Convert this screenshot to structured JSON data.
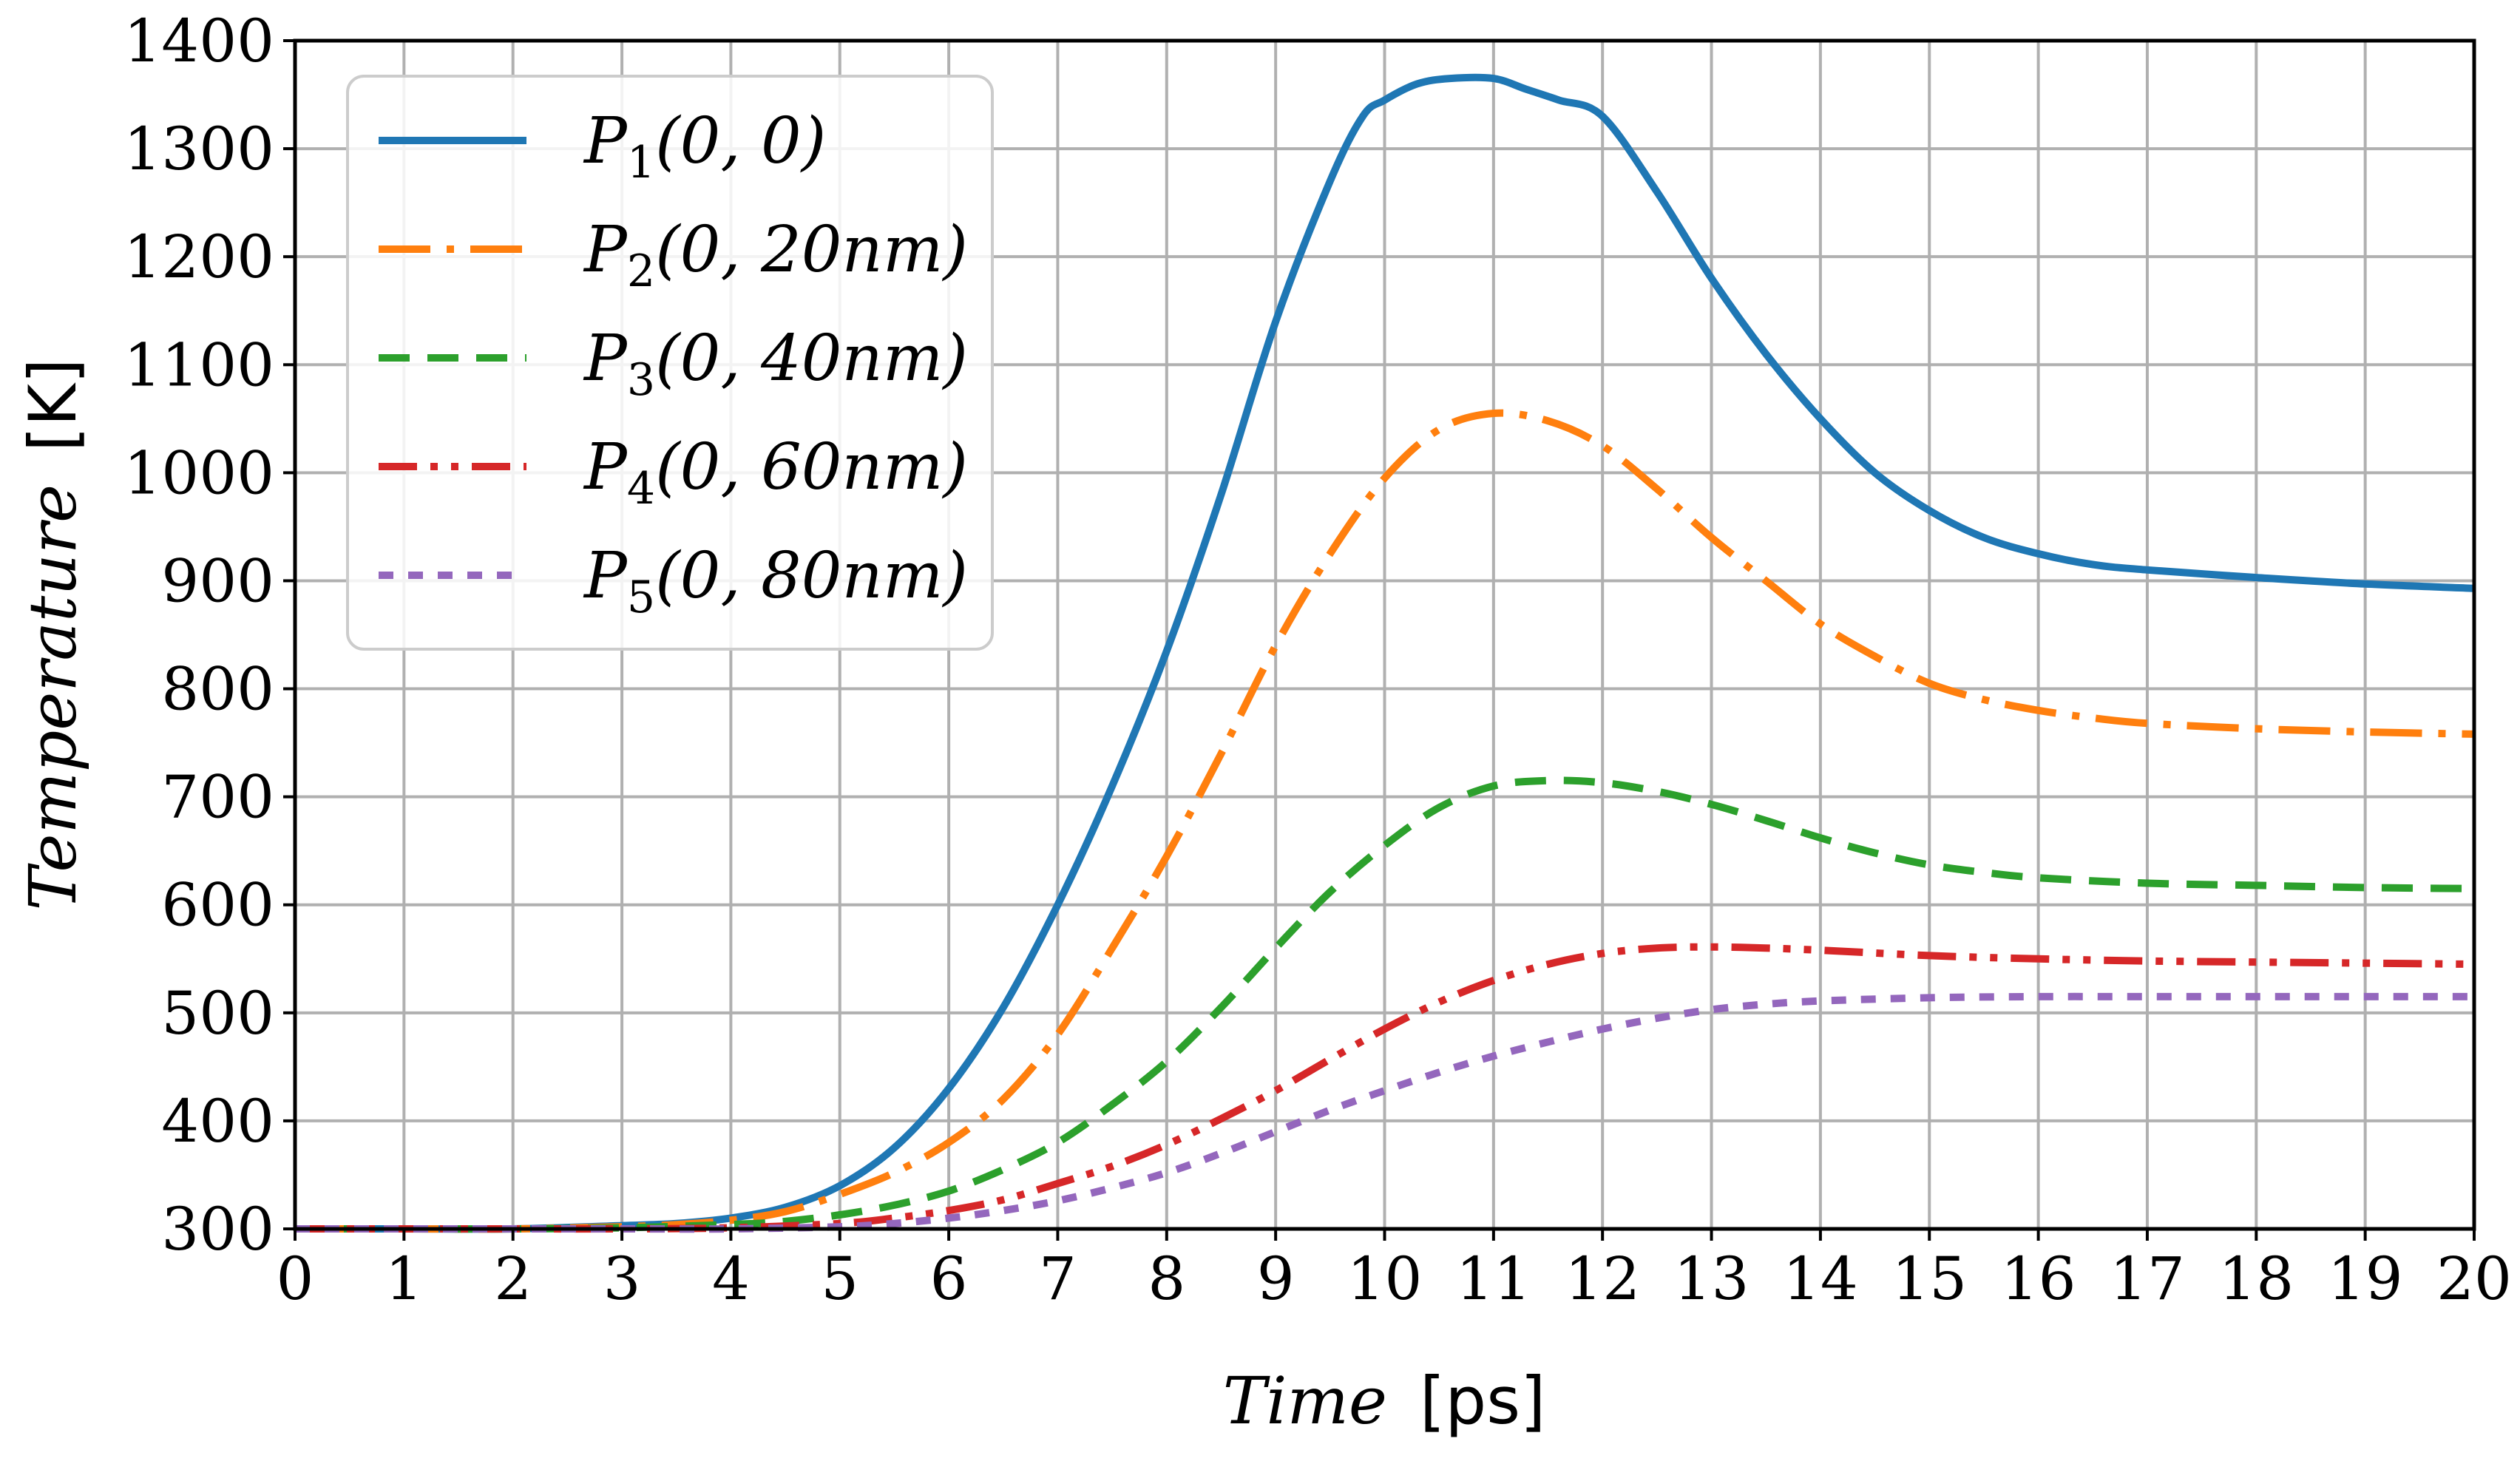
{
  "chart_data": {
    "type": "line",
    "title": "",
    "xlabel": {
      "var": "Time",
      "unit": "[ps]"
    },
    "ylabel": {
      "var": "Temperature",
      "unit": "[K]"
    },
    "xlim": [
      0,
      20
    ],
    "ylim": [
      300,
      1400
    ],
    "xticks": [
      0,
      1,
      2,
      3,
      4,
      5,
      6,
      7,
      8,
      9,
      10,
      11,
      12,
      13,
      14,
      15,
      16,
      17,
      18,
      19,
      20
    ],
    "yticks": [
      300,
      400,
      500,
      600,
      700,
      800,
      900,
      1000,
      1100,
      1200,
      1300,
      1400
    ],
    "grid": true,
    "legend_position": "top-left",
    "series": [
      {
        "name": "P1(0,0)",
        "legend": {
          "p": "P",
          "sub": "1",
          "args": "(0, 0)"
        },
        "color": "#1f77b4",
        "style": "solid",
        "x": [
          0,
          1,
          2,
          3,
          3.5,
          4,
          4.5,
          5,
          5.5,
          6,
          6.5,
          7,
          7.5,
          8,
          8.5,
          9,
          9.5,
          9.8,
          10,
          10.3,
          10.6,
          11,
          11.3,
          11.6,
          12,
          12.5,
          13,
          13.5,
          14,
          14.5,
          15,
          15.5,
          16,
          16.5,
          17,
          18,
          19,
          20
        ],
        "y": [
          300,
          300,
          300,
          303,
          305,
          310,
          320,
          340,
          375,
          430,
          505,
          600,
          710,
          835,
          980,
          1140,
          1270,
          1330,
          1345,
          1360,
          1365,
          1365,
          1355,
          1345,
          1330,
          1260,
          1180,
          1110,
          1050,
          1000,
          965,
          940,
          925,
          915,
          910,
          903,
          897,
          893
        ]
      },
      {
        "name": "P2(0,20nm)",
        "legend": {
          "p": "P",
          "sub": "2",
          "args": "(0, 20nm)"
        },
        "color": "#ff7f0e",
        "style": "dashdot",
        "x": [
          0,
          1,
          2,
          3,
          3.5,
          4,
          4.5,
          5,
          5.5,
          6,
          6.5,
          7,
          7.5,
          8,
          8.5,
          9,
          9.5,
          10,
          10.5,
          11,
          11.5,
          12,
          12.5,
          13,
          13.5,
          14,
          14.5,
          15,
          15.5,
          16,
          16.5,
          17,
          18,
          19,
          20
        ],
        "y": [
          300,
          300,
          300,
          302,
          304,
          308,
          316,
          332,
          352,
          380,
          420,
          480,
          560,
          645,
          740,
          840,
          925,
          995,
          1040,
          1055,
          1048,
          1025,
          985,
          940,
          900,
          860,
          830,
          805,
          790,
          780,
          773,
          768,
          763,
          760,
          758
        ]
      },
      {
        "name": "P3(0,40nm)",
        "legend": {
          "p": "P",
          "sub": "3",
          "args": "(0, 40nm)"
        },
        "color": "#2ca02c",
        "style": "dashed",
        "x": [
          0,
          1,
          2,
          3,
          4,
          4.5,
          5,
          5.5,
          6,
          6.5,
          7,
          7.5,
          8,
          8.5,
          9,
          9.5,
          10,
          10.5,
          11,
          11.5,
          12,
          12.5,
          13,
          13.5,
          14,
          14.5,
          15,
          15.5,
          16,
          17,
          18,
          19,
          20
        ],
        "y": [
          300,
          300,
          300,
          301,
          304,
          307,
          313,
          322,
          335,
          355,
          380,
          415,
          455,
          505,
          560,
          612,
          655,
          690,
          710,
          715,
          713,
          705,
          693,
          678,
          662,
          648,
          637,
          630,
          625,
          620,
          618,
          616,
          615
        ]
      },
      {
        "name": "P4(0,60nm)",
        "legend": {
          "p": "P",
          "sub": "4",
          "args": "(0, 60nm)"
        },
        "color": "#d62728",
        "style": "dashdotdot",
        "x": [
          0,
          1,
          2,
          3,
          4,
          5,
          5.5,
          6,
          6.5,
          7,
          7.5,
          8,
          8.5,
          9,
          9.5,
          10,
          10.5,
          11,
          11.5,
          12,
          12.5,
          13,
          13.5,
          14,
          15,
          16,
          17,
          18,
          19,
          20
        ],
        "y": [
          300,
          300,
          300,
          300,
          301,
          305,
          310,
          317,
          327,
          342,
          358,
          378,
          402,
          428,
          457,
          485,
          510,
          530,
          545,
          555,
          560,
          561,
          560,
          558,
          553,
          550,
          548,
          547,
          546,
          545
        ]
      },
      {
        "name": "P5(0,80nm)",
        "legend": {
          "p": "P",
          "sub": "5",
          "args": "(0, 80nm)"
        },
        "color": "#9467bd",
        "style": "dotted",
        "x": [
          0,
          1,
          2,
          3,
          4,
          5,
          5.5,
          6,
          6.5,
          7,
          7.5,
          8,
          8.5,
          9,
          9.5,
          10,
          10.5,
          11,
          11.5,
          12,
          12.5,
          13,
          13.5,
          14,
          15,
          16,
          17,
          18,
          19,
          20
        ],
        "y": [
          300,
          300,
          300,
          300,
          300,
          302,
          305,
          310,
          317,
          326,
          338,
          352,
          370,
          390,
          410,
          428,
          445,
          460,
          473,
          485,
          495,
          503,
          508,
          511,
          514,
          515,
          515,
          515,
          515,
          515
        ]
      }
    ]
  }
}
